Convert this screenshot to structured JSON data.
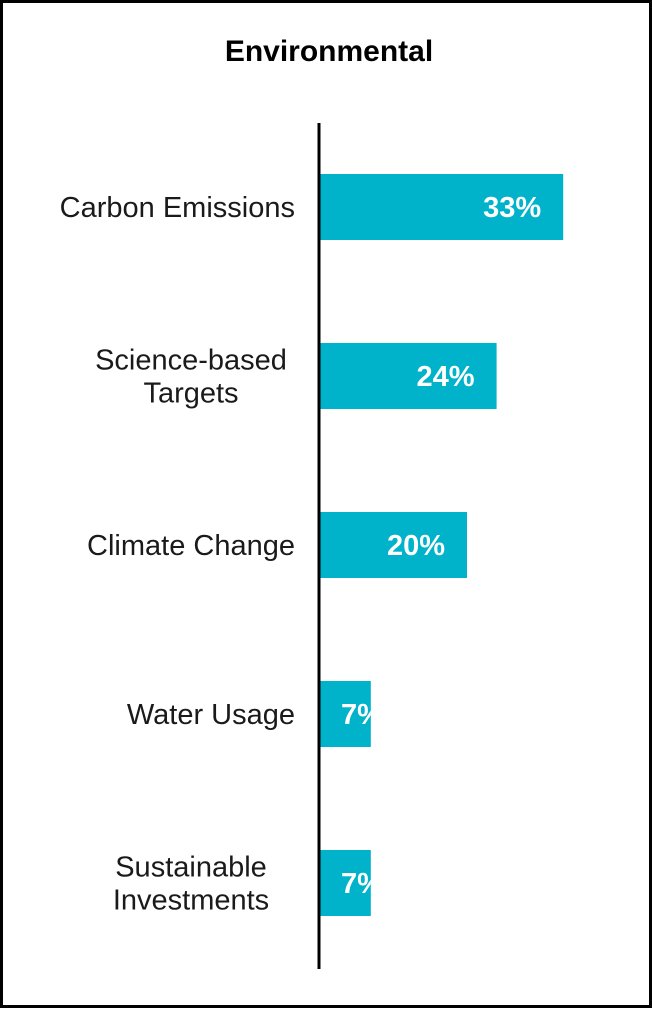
{
  "chart_data": {
    "type": "bar",
    "orientation": "horizontal",
    "title": "Environmental",
    "categories": [
      [
        "Carbon Emissions"
      ],
      [
        "Science-based",
        "Targets"
      ],
      [
        "Climate Change"
      ],
      [
        "Water Usage"
      ],
      [
        "Sustainable",
        "Investments"
      ]
    ],
    "values": [
      33,
      24,
      20,
      7,
      7
    ],
    "value_labels": [
      "33%",
      "24%",
      "20%",
      "7%",
      "7%"
    ],
    "xlim": [
      0,
      45
    ],
    "grid": false,
    "legend": "none",
    "bar_color": "#00B2CA",
    "axis_color": "#000000"
  }
}
